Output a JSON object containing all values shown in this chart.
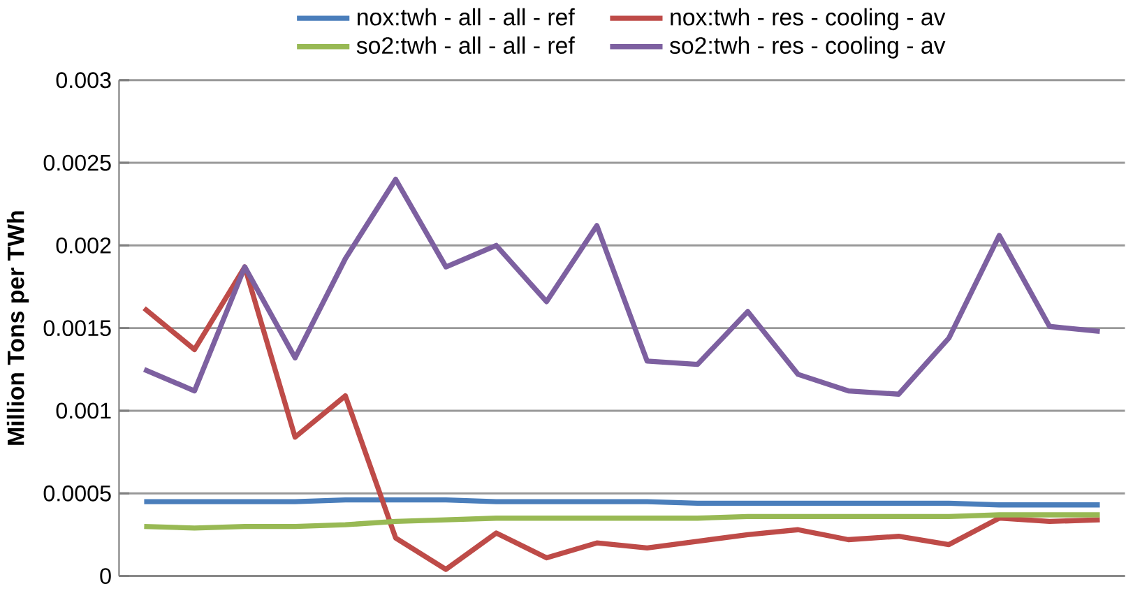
{
  "chart_data": {
    "type": "line",
    "ylabel": "Million Tons per TWh",
    "categories": [
      null,
      null,
      null,
      null,
      null,
      null,
      null,
      null,
      null,
      null,
      null,
      null,
      null,
      null,
      null,
      null,
      null,
      null,
      null,
      null
    ],
    "series": [
      {
        "name": "nox:twh - all - all - ref",
        "color": "#4a7ebb",
        "values": [
          0.00045,
          0.00045,
          0.00045,
          0.00045,
          0.00046,
          0.00046,
          0.00046,
          0.00045,
          0.00045,
          0.00045,
          0.00045,
          0.00044,
          0.00044,
          0.00044,
          0.00044,
          0.00044,
          0.00044,
          0.00043,
          0.00043,
          0.00043
        ]
      },
      {
        "name": "nox:twh - res - cooling - av",
        "color": "#be4b48",
        "values": [
          0.00162,
          0.00137,
          0.00187,
          0.00084,
          0.00109,
          0.00023,
          4e-05,
          0.00026,
          0.00011,
          0.0002,
          0.00017,
          0.00021,
          0.00025,
          0.00028,
          0.00022,
          0.00024,
          0.00019,
          0.00035,
          0.00033,
          0.00034
        ]
      },
      {
        "name": "so2:twh - all - all - ref",
        "color": "#98b954",
        "values": [
          0.0003,
          0.00029,
          0.0003,
          0.0003,
          0.00031,
          0.00033,
          0.00034,
          0.00035,
          0.00035,
          0.00035,
          0.00035,
          0.00035,
          0.00036,
          0.00036,
          0.00036,
          0.00036,
          0.00036,
          0.00037,
          0.00037,
          0.00037
        ]
      },
      {
        "name": "so2:twh - res - cooling - av",
        "color": "#7d60a0",
        "values": [
          0.00125,
          0.00112,
          0.00187,
          0.00132,
          0.00192,
          0.0024,
          0.00187,
          0.002,
          0.00166,
          0.00212,
          0.0013,
          0.00128,
          0.0016,
          0.00122,
          0.00112,
          0.0011,
          0.00144,
          0.00206,
          0.00151,
          0.00148
        ]
      }
    ],
    "ylim": [
      0,
      0.003
    ],
    "yticks": [
      0,
      0.0005,
      0.001,
      0.0015,
      0.002,
      0.0025,
      0.003
    ],
    "grid": "y",
    "legend": "top",
    "marker": "none",
    "line_style": "solid"
  }
}
